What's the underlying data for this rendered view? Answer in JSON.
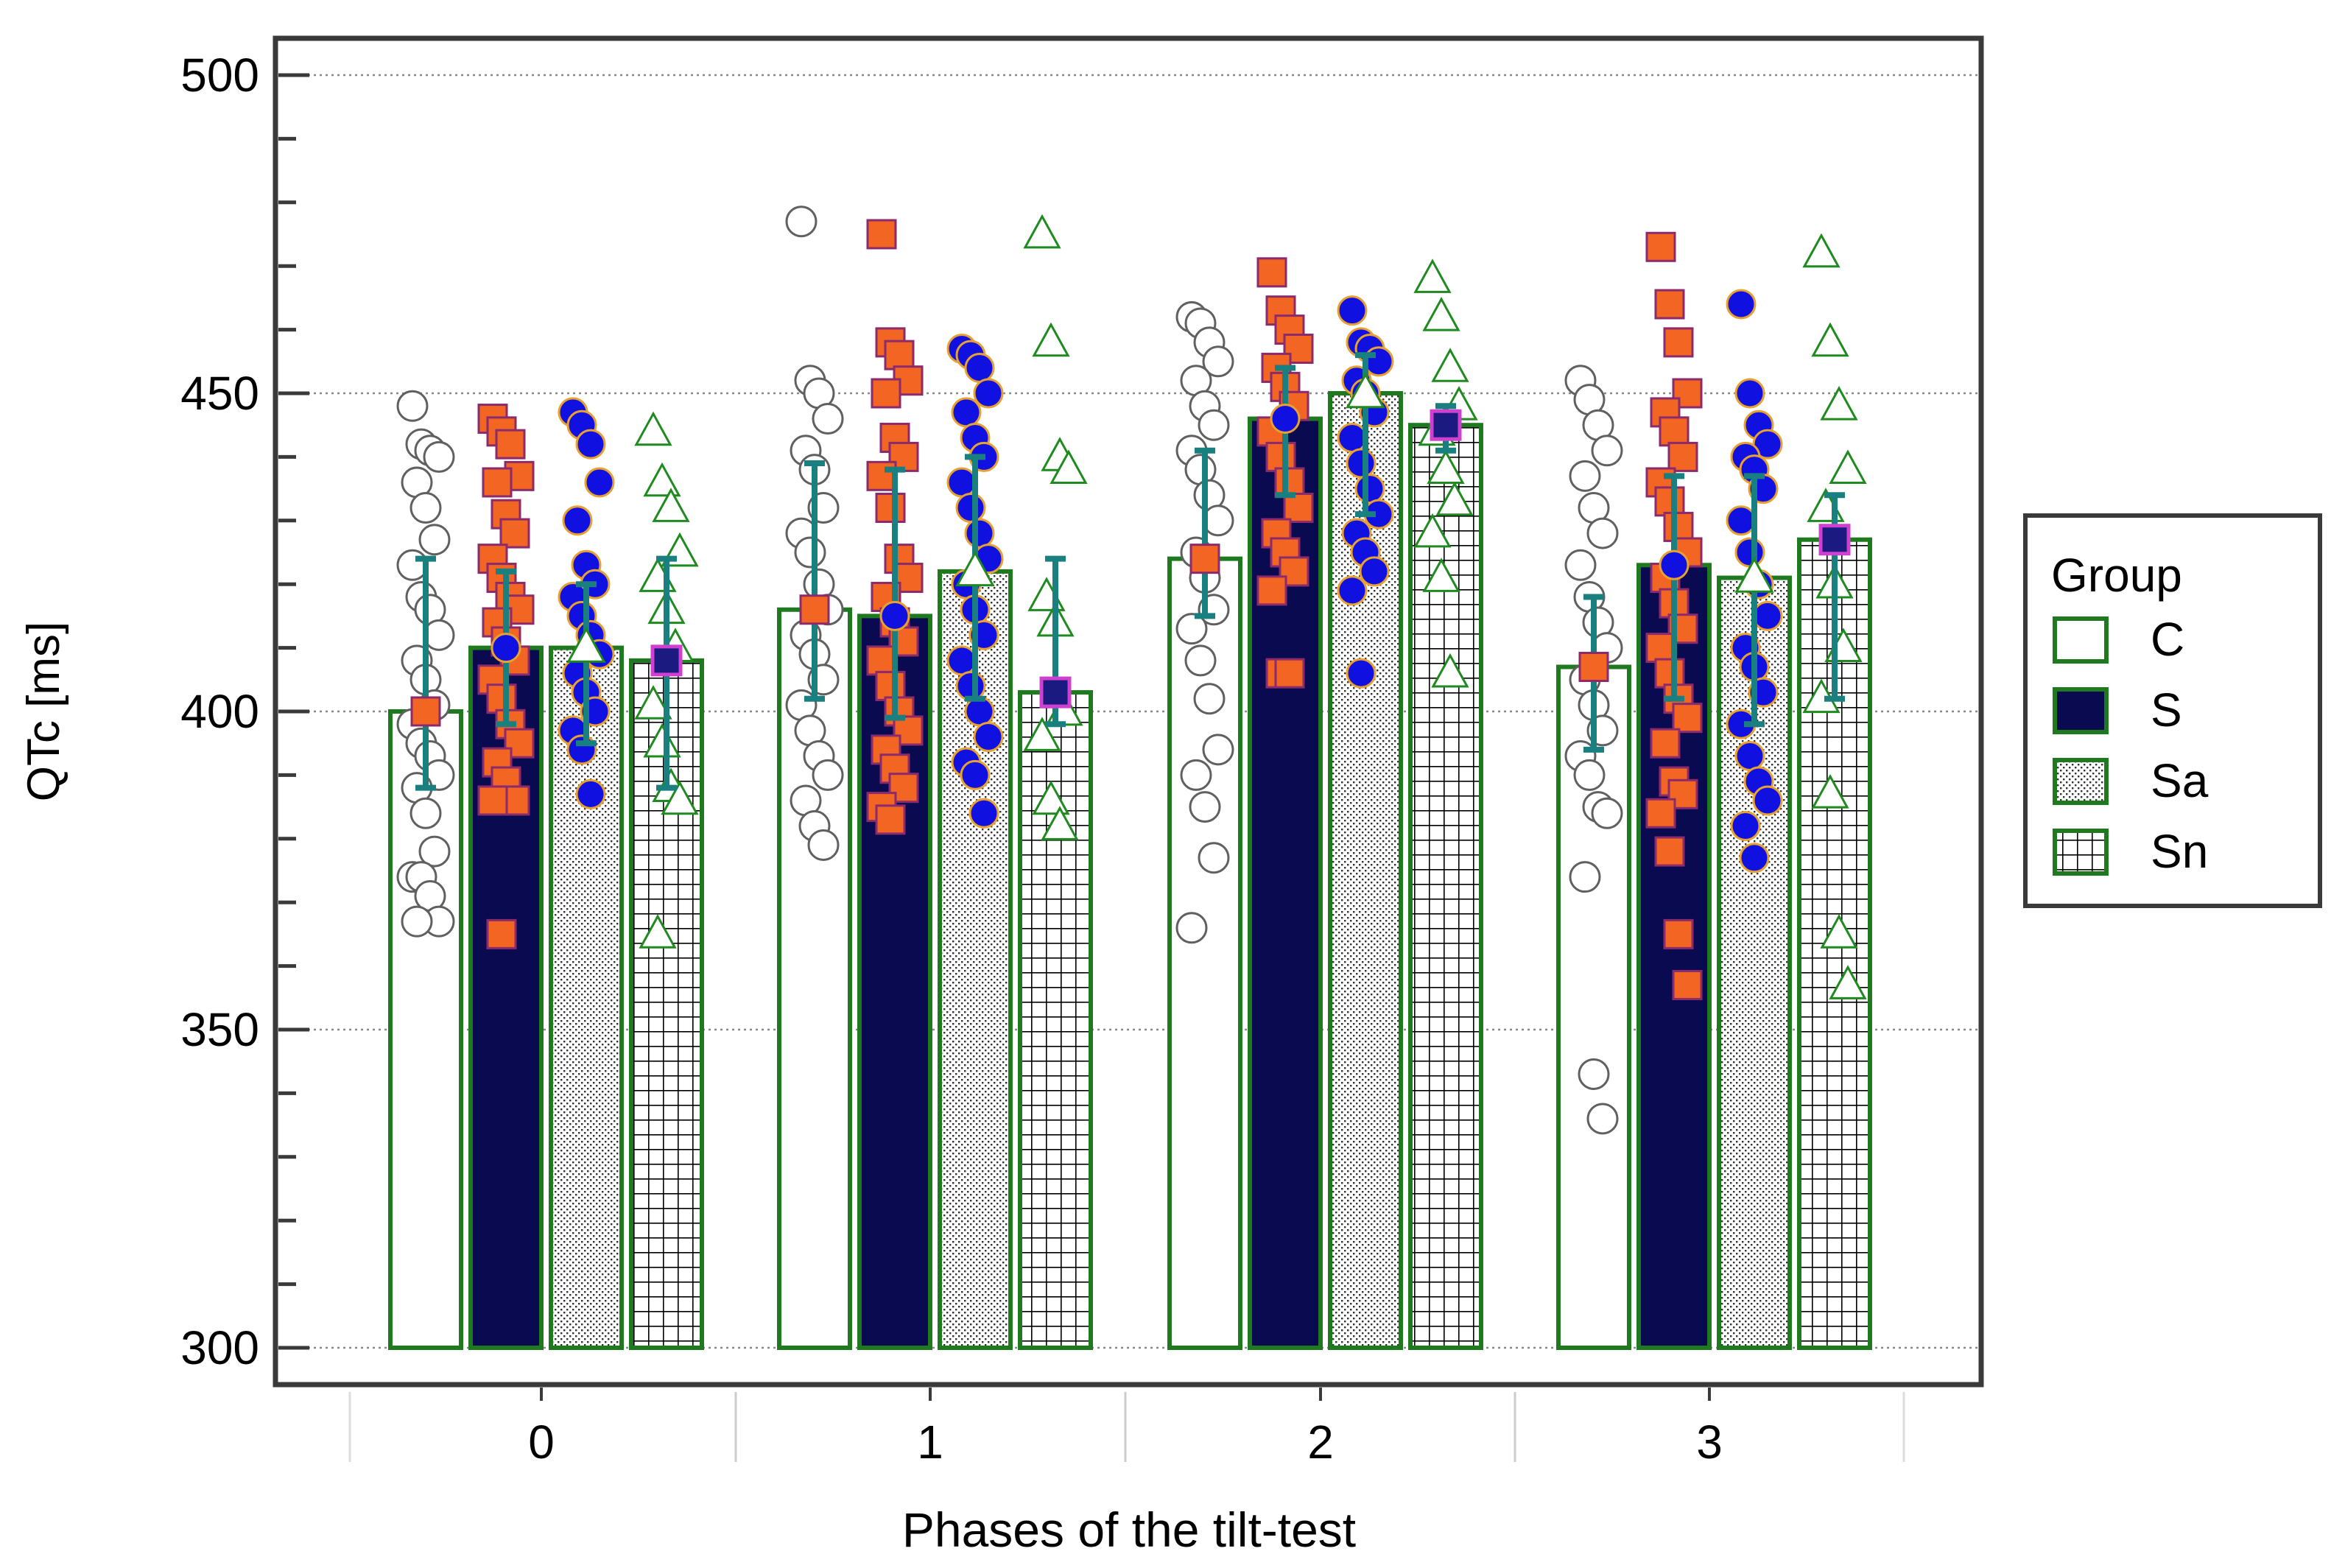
{
  "chart_data": {
    "type": "bar",
    "xlabel": "Phases of the tilt-test",
    "ylabel": "QTc [ms]",
    "ylim": [
      300,
      500
    ],
    "yticks": [
      300,
      350,
      400,
      450,
      500
    ],
    "grid": true,
    "categories": [
      "0",
      "1",
      "2",
      "3"
    ],
    "legend": {
      "title": "Group",
      "position": "right",
      "entries": [
        "C",
        "S",
        "Sa",
        "Sn"
      ]
    },
    "series": [
      {
        "name": "C",
        "pattern": "blank",
        "mean_marker": "square",
        "values": [
          400,
          416,
          424,
          407
        ],
        "error_low": [
          388,
          402,
          415,
          394
        ],
        "error_high": [
          424,
          439,
          441,
          418
        ],
        "points": [
          [
            448,
            442,
            441,
            440,
            436,
            432,
            427,
            423,
            418,
            416,
            412,
            408,
            405,
            401,
            398,
            395,
            393,
            390,
            388,
            384,
            378,
            374,
            374,
            371,
            367,
            367
          ],
          [
            477,
            452,
            450,
            446,
            441,
            438,
            432,
            428,
            425,
            420,
            416,
            412,
            409,
            405,
            401,
            397,
            393,
            390,
            386,
            382,
            379
          ],
          [
            462,
            461,
            458,
            455,
            452,
            448,
            445,
            441,
            438,
            434,
            430,
            425,
            421,
            416,
            413,
            408,
            402,
            394,
            390,
            385,
            377,
            366
          ],
          [
            452,
            449,
            445,
            441,
            437,
            432,
            428,
            423,
            418,
            414,
            410,
            405,
            401,
            397,
            393,
            390,
            385,
            384,
            374,
            343,
            336
          ]
        ]
      },
      {
        "name": "S",
        "pattern": "solid",
        "mean_marker": "circle",
        "values": [
          410,
          415,
          446,
          423
        ],
        "error_low": [
          398,
          399,
          434,
          402
        ],
        "error_high": [
          422,
          438,
          454,
          437
        ],
        "points": [
          [
            446,
            444,
            442,
            437,
            436,
            431,
            428,
            424,
            421,
            418,
            416,
            414,
            411,
            408,
            405,
            402,
            398,
            395,
            392,
            389,
            386,
            386,
            365
          ],
          [
            475,
            458,
            456,
            452,
            450,
            443,
            440,
            437,
            432,
            424,
            421,
            418,
            414,
            411,
            408,
            404,
            400,
            397,
            394,
            391,
            388,
            385,
            383
          ],
          [
            469,
            463,
            460,
            457,
            454,
            451,
            448,
            444,
            440,
            436,
            432,
            428,
            425,
            422,
            419,
            406,
            406
          ],
          [
            473,
            464,
            458,
            450,
            447,
            444,
            440,
            436,
            433,
            429,
            425,
            421,
            417,
            413,
            410,
            406,
            402,
            399,
            395,
            389,
            387,
            384,
            378,
            365,
            357
          ]
        ]
      },
      {
        "name": "Sa",
        "pattern": "dotted",
        "mean_marker": "triangle",
        "values": [
          410,
          422,
          450,
          421
        ],
        "error_low": [
          395,
          402,
          431,
          398
        ],
        "error_high": [
          420,
          440,
          456,
          437
        ],
        "points": [
          [
            447,
            445,
            442,
            436,
            430,
            423,
            420,
            418,
            415,
            412,
            409,
            406,
            403,
            400,
            397,
            394,
            387
          ],
          [
            457,
            456,
            454,
            450,
            447,
            443,
            440,
            436,
            432,
            428,
            424,
            420,
            416,
            412,
            408,
            404,
            400,
            396,
            392,
            390,
            384
          ],
          [
            463,
            458,
            457,
            455,
            452,
            450,
            447,
            443,
            439,
            435,
            431,
            428,
            425,
            422,
            419,
            406
          ],
          [
            464,
            450,
            445,
            442,
            440,
            438,
            435,
            430,
            425,
            420,
            415,
            410,
            407,
            403,
            398,
            393,
            389,
            386,
            382,
            377
          ]
        ]
      },
      {
        "name": "Sn",
        "pattern": "grid",
        "mean_marker": "square",
        "values": [
          408,
          403,
          445,
          427
        ],
        "error_low": [
          388,
          398,
          441,
          402
        ],
        "error_high": [
          424,
          424,
          448,
          434
        ],
        "points": [
          [
            444,
            436,
            432,
            425,
            421,
            416,
            410,
            401,
            395,
            388,
            386,
            365
          ],
          [
            475,
            458,
            440,
            438,
            418,
            414,
            400,
            396,
            386,
            382
          ],
          [
            468,
            462,
            454,
            448,
            444,
            438,
            433,
            428,
            421,
            406
          ],
          [
            472,
            458,
            448,
            438,
            432,
            420,
            410,
            402,
            387,
            365,
            357
          ]
        ]
      }
    ]
  }
}
